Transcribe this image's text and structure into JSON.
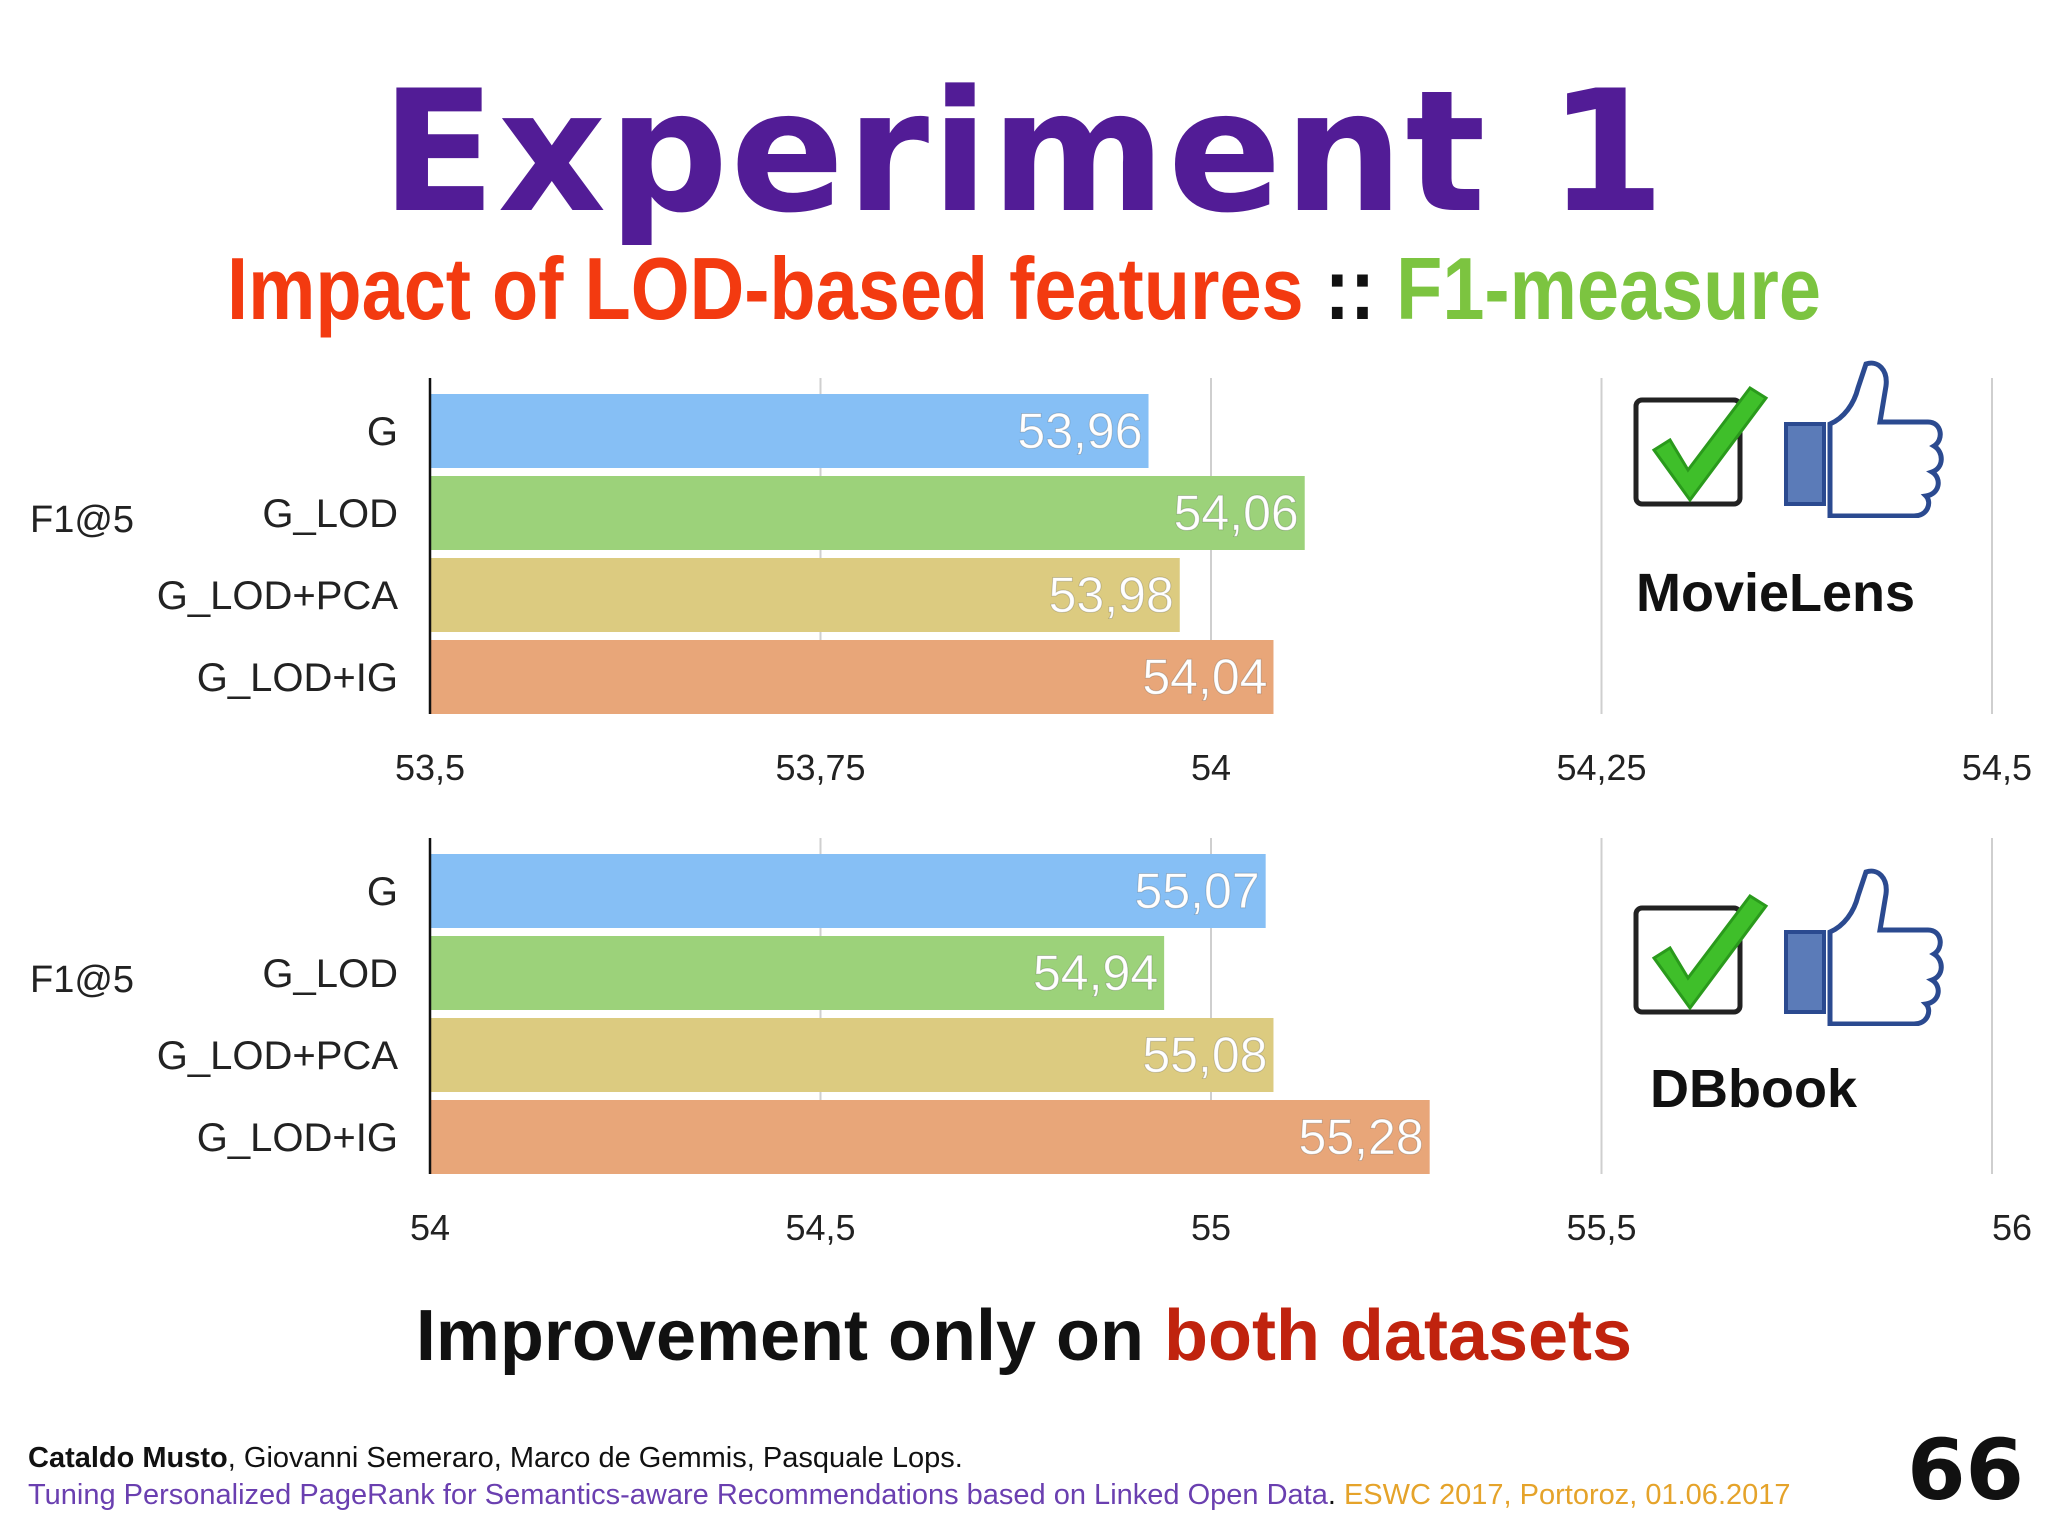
{
  "slide": {
    "title": "Experiment 1",
    "subtitle_part1": "Impact of LOD-based features",
    "subtitle_sep": " :: ",
    "subtitle_part2": "F1-measure",
    "conclusion_part1": "Improvement only on ",
    "conclusion_part2": "both datasets",
    "footer": {
      "lead_author": "Cataldo Musto",
      "other_authors": ", Giovanni Semeraro, Marco de Gemmis, Pasquale Lops.",
      "paper_title": "Tuning Personalized PageRank for Semantics-aware Recommendations based on Linked Open Data",
      "paper_sep": ". ",
      "venue": "ESWC 2017, Portoroz, 01.06.2017"
    },
    "page_number": "66"
  },
  "colors": {
    "title": "#521c96",
    "subtitle_red": "#f33a10",
    "subtitle_green": "#7cc440",
    "conclusion_red": "#c0230e",
    "paper_title": "#6a3fb0",
    "venue": "#e5a32a"
  },
  "icons": [
    "green-checkbox-icon",
    "thumbs-up-icon"
  ],
  "chart_data": [
    {
      "type": "bar",
      "orientation": "horizontal",
      "dataset": "MovieLens",
      "group_label": "F1@5",
      "categories": [
        "G",
        "G_LOD",
        "G_LOD+PCA",
        "G_LOD+IG"
      ],
      "values": [
        53.96,
        54.06,
        53.98,
        54.04
      ],
      "value_labels": [
        "53,96",
        "54,06",
        "53,98",
        "54,04"
      ],
      "xlim": [
        53.5,
        54.5
      ],
      "ticks": [
        53.5,
        53.75,
        54,
        54.25,
        54.5
      ],
      "tick_labels": [
        "53,5",
        "53,75",
        "54",
        "54,25",
        "54,5"
      ],
      "bar_colors": [
        "#86bff5",
        "#9cd27a",
        "#dccb80",
        "#e8a679"
      ],
      "grid": true
    },
    {
      "type": "bar",
      "orientation": "horizontal",
      "dataset": "DBbook",
      "group_label": "F1@5",
      "categories": [
        "G",
        "G_LOD",
        "G_LOD+PCA",
        "G_LOD+IG"
      ],
      "values": [
        55.07,
        54.94,
        55.08,
        55.28
      ],
      "value_labels": [
        "55,07",
        "54,94",
        "55,08",
        "55,28"
      ],
      "xlim": [
        54,
        56
      ],
      "ticks": [
        54,
        54.5,
        55,
        55.5,
        56
      ],
      "tick_labels": [
        "54",
        "54,5",
        "55",
        "55,5",
        "56"
      ],
      "bar_colors": [
        "#86bff5",
        "#9cd27a",
        "#dccb80",
        "#e8a679"
      ],
      "grid": true
    }
  ]
}
